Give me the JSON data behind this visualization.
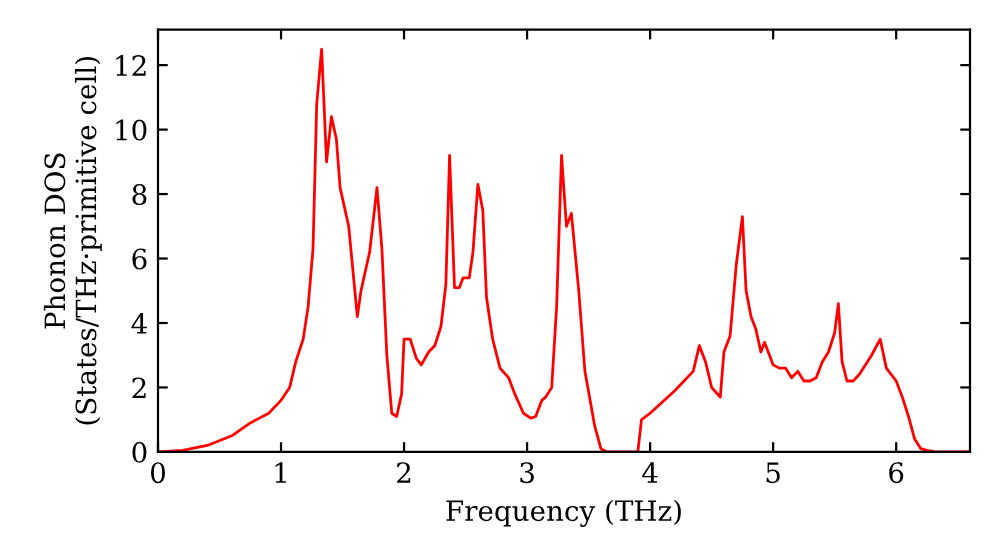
{
  "chart_data": {
    "type": "line",
    "xlabel": "Frequency (THz)",
    "ylabel": "Phonon DOS\n(States/THz·primitive cell)",
    "xlim": [
      0,
      6.6
    ],
    "ylim": [
      0,
      13.1
    ],
    "xticks": [
      0,
      1,
      2,
      3,
      4,
      5,
      6
    ],
    "yticks": [
      0,
      2,
      4,
      6,
      8,
      10,
      12
    ],
    "grid": false,
    "legend": false,
    "marker": "none",
    "line_style": "solid",
    "x": [
      0,
      0.2,
      0.4,
      0.6,
      0.75,
      0.9,
      1.0,
      1.07,
      1.12,
      1.18,
      1.22,
      1.26,
      1.29,
      1.33,
      1.37,
      1.41,
      1.45,
      1.48,
      1.55,
      1.62,
      1.65,
      1.72,
      1.78,
      1.82,
      1.86,
      1.9,
      1.94,
      1.98,
      2.0,
      2.05,
      2.1,
      2.14,
      2.2,
      2.25,
      2.3,
      2.34,
      2.37,
      2.41,
      2.45,
      2.48,
      2.53,
      2.56,
      2.6,
      2.64,
      2.67,
      2.72,
      2.78,
      2.85,
      2.9,
      2.97,
      3.03,
      3.07,
      3.12,
      3.15,
      3.2,
      3.24,
      3.28,
      3.32,
      3.36,
      3.42,
      3.47,
      3.55,
      3.6,
      3.65,
      3.9,
      3.93,
      4.0,
      4.2,
      4.35,
      4.4,
      4.45,
      4.5,
      4.57,
      4.6,
      4.65,
      4.7,
      4.75,
      4.78,
      4.82,
      4.86,
      4.9,
      4.93,
      5.0,
      5.05,
      5.1,
      5.15,
      5.2,
      5.25,
      5.3,
      5.35,
      5.4,
      5.45,
      5.5,
      5.53,
      5.56,
      5.6,
      5.65,
      5.7,
      5.8,
      5.87,
      5.92,
      6.0,
      6.05,
      6.1,
      6.15,
      6.2,
      6.25,
      6.32,
      6.6
    ],
    "series": [
      {
        "color": "#ff0000",
        "values": [
          0,
          0.05,
          0.2,
          0.5,
          0.9,
          1.2,
          1.6,
          2.0,
          2.8,
          3.5,
          4.5,
          6.3,
          10.8,
          12.5,
          9.0,
          10.4,
          9.7,
          8.2,
          7.0,
          4.2,
          5.0,
          6.2,
          8.2,
          6.3,
          3.0,
          1.2,
          1.1,
          1.8,
          3.5,
          3.5,
          2.9,
          2.7,
          3.1,
          3.3,
          3.9,
          5.2,
          9.2,
          5.1,
          5.1,
          5.4,
          5.4,
          6.2,
          8.3,
          7.5,
          4.8,
          3.5,
          2.6,
          2.3,
          1.8,
          1.2,
          1.05,
          1.1,
          1.6,
          1.7,
          2.0,
          4.5,
          9.2,
          7.0,
          7.4,
          5.0,
          2.5,
          0.8,
          0.1,
          0,
          0,
          1.0,
          1.2,
          1.9,
          2.5,
          3.3,
          2.8,
          2.0,
          1.7,
          3.1,
          3.6,
          5.8,
          7.3,
          5.0,
          4.2,
          3.8,
          3.1,
          3.4,
          2.7,
          2.6,
          2.6,
          2.3,
          2.5,
          2.2,
          2.2,
          2.3,
          2.8,
          3.1,
          3.7,
          4.6,
          2.8,
          2.2,
          2.2,
          2.4,
          3.0,
          3.5,
          2.6,
          2.2,
          1.7,
          1.1,
          0.4,
          0.1,
          0.05,
          0,
          0
        ]
      }
    ]
  }
}
